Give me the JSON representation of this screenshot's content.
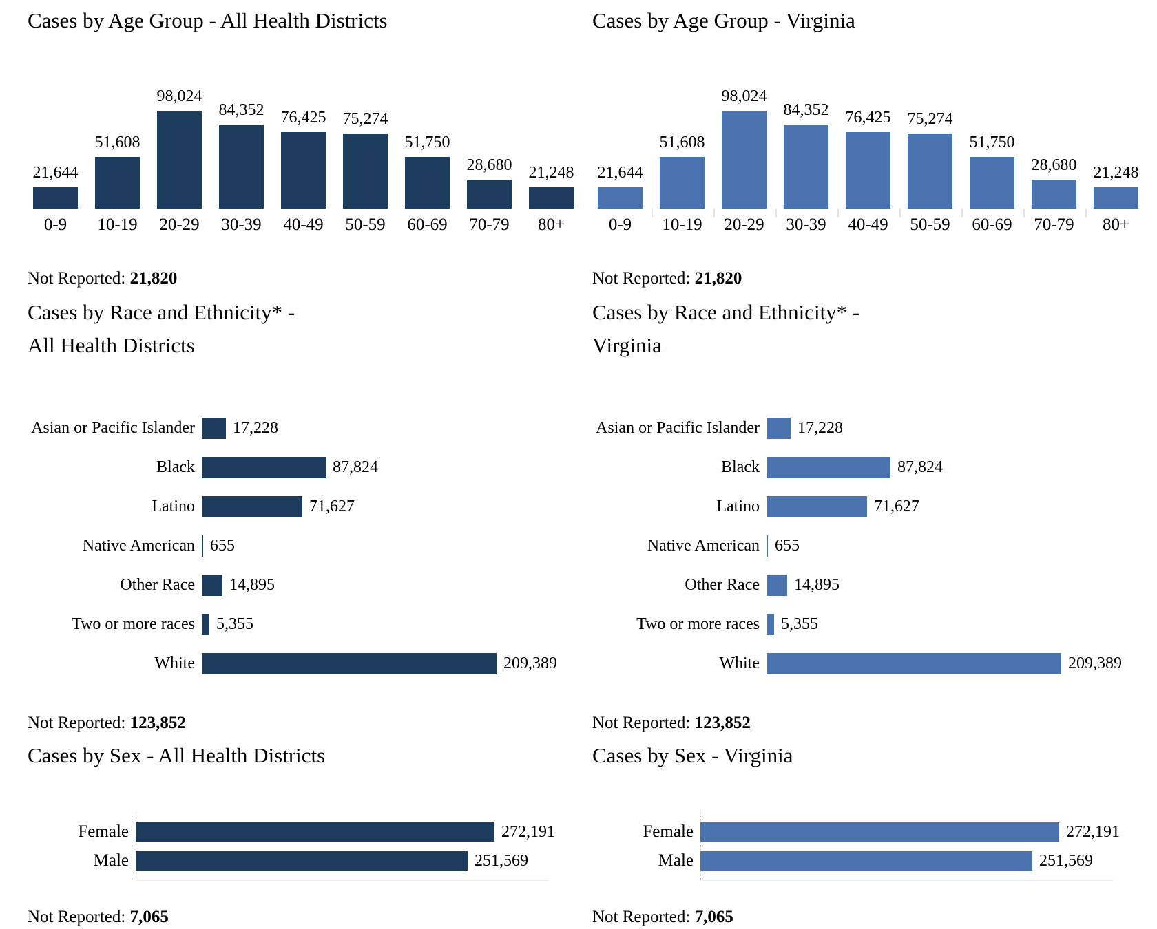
{
  "labels": {
    "not_reported": "Not Reported:"
  },
  "colors": {
    "navy": "#1d3c5e",
    "blue": "#4a73b0"
  },
  "chart_data": [
    {
      "id": "age-all-districts",
      "type": "bar",
      "orientation": "vertical",
      "title": "Cases by Age Group - All Health Districts",
      "series_color": "#1d3c5e",
      "categories": [
        "0-9",
        "10-19",
        "20-29",
        "30-39",
        "40-49",
        "50-59",
        "60-69",
        "70-79",
        "80+"
      ],
      "values": [
        21644,
        51608,
        98024,
        84352,
        76425,
        75274,
        51750,
        28680,
        21248
      ],
      "value_labels": [
        "21,644",
        "51,608",
        "98,024",
        "84,352",
        "76,425",
        "75,274",
        "51,750",
        "28,680",
        "21,248"
      ],
      "not_reported": "21,820",
      "axis_ticks": false
    },
    {
      "id": "age-virginia",
      "type": "bar",
      "orientation": "vertical",
      "title": "Cases by Age Group - Virginia",
      "series_color": "#4a73b0",
      "categories": [
        "0-9",
        "10-19",
        "20-29",
        "30-39",
        "40-49",
        "50-59",
        "60-69",
        "70-79",
        "80+"
      ],
      "values": [
        21644,
        51608,
        98024,
        84352,
        76425,
        75274,
        51750,
        28680,
        21248
      ],
      "value_labels": [
        "21,644",
        "51,608",
        "98,024",
        "84,352",
        "76,425",
        "75,274",
        "51,750",
        "28,680",
        "21,248"
      ],
      "not_reported": "21,820",
      "axis_ticks": true
    },
    {
      "id": "race-all-districts",
      "type": "bar",
      "orientation": "horizontal",
      "title_lines": [
        "Cases by Race and Ethnicity* -",
        "All Health Districts"
      ],
      "series_color": "#1d3c5e",
      "categories": [
        "Asian or Pacific Islander",
        "Black",
        "Latino",
        "Native American",
        "Other Race",
        "Two or more races",
        "White"
      ],
      "values": [
        17228,
        87824,
        71627,
        655,
        14895,
        5355,
        209389
      ],
      "value_labels": [
        "17,228",
        "87,824",
        "71,627",
        "655",
        "14,895",
        "5,355",
        "209,389"
      ],
      "not_reported": "123,852"
    },
    {
      "id": "race-virginia",
      "type": "bar",
      "orientation": "horizontal",
      "title_lines": [
        "Cases by Race and Ethnicity* -",
        "Virginia"
      ],
      "series_color": "#4a73b0",
      "categories": [
        "Asian or Pacific Islander",
        "Black",
        "Latino",
        "Native American",
        "Other Race",
        "Two or more races",
        "White"
      ],
      "values": [
        17228,
        87824,
        71627,
        655,
        14895,
        5355,
        209389
      ],
      "value_labels": [
        "17,228",
        "87,824",
        "71,627",
        "655",
        "14,895",
        "5,355",
        "209,389"
      ],
      "not_reported": "123,852"
    },
    {
      "id": "sex-all-districts",
      "type": "bar",
      "orientation": "horizontal",
      "title": "Cases by Sex - All Health Districts",
      "series_color": "#1d3c5e",
      "categories": [
        "Female",
        "Male"
      ],
      "values": [
        272191,
        251569
      ],
      "value_labels": [
        "272,191",
        "251,569"
      ],
      "not_reported": "7,065"
    },
    {
      "id": "sex-virginia",
      "type": "bar",
      "orientation": "horizontal",
      "title": "Cases by Sex - Virginia",
      "series_color": "#4a73b0",
      "categories": [
        "Female",
        "Male"
      ],
      "values": [
        272191,
        251569
      ],
      "value_labels": [
        "272,191",
        "251,569"
      ],
      "not_reported": "7,065"
    }
  ]
}
